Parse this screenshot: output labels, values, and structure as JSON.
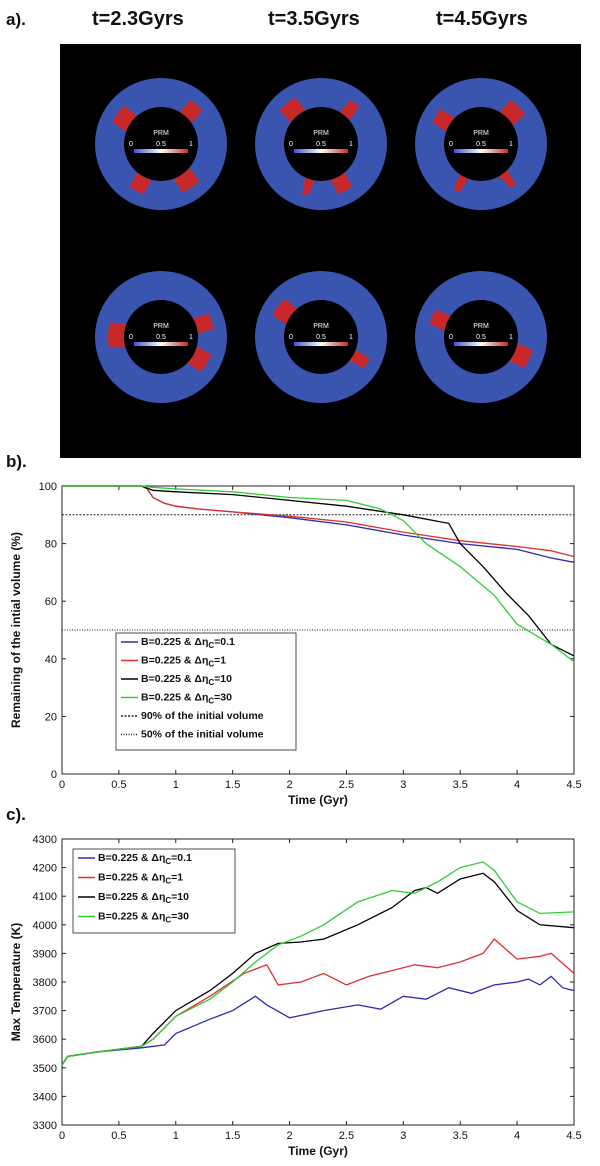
{
  "panel_a": {
    "label": "a).",
    "times": [
      "t=2.3Gyrs",
      "t=3.5Gyrs",
      "t=4.5Gyrs"
    ],
    "colorbar": {
      "title": "PRM",
      "ticks": [
        "0",
        "0.5",
        "1"
      ]
    },
    "colors": {
      "mantle": "#3a55b0",
      "core": "#000000",
      "prm": "#c8282a",
      "background": "#000000"
    }
  },
  "panel_b": {
    "label": "b)."
  },
  "panel_c": {
    "label": "c)."
  },
  "chart_data": [
    {
      "type": "line",
      "xlabel": "Time (Gyr)",
      "ylabel": "Remaining of the intial volume (%)",
      "xlim": [
        0,
        4.5
      ],
      "ylim": [
        0,
        100
      ],
      "xticks": [
        "0",
        "0.5",
        "1",
        "1.5",
        "2",
        "2.5",
        "3",
        "3.5",
        "4",
        "4.5"
      ],
      "yticks": [
        "0",
        "20",
        "40",
        "60",
        "80",
        "100"
      ],
      "legend": "lower-left",
      "reference_lines": [
        {
          "name": "90% of the initial volume",
          "y": 90
        },
        {
          "name": "50% of the initial volume",
          "y": 50
        }
      ],
      "series": [
        {
          "name": "B=0.225 & Δη_C=0.1",
          "color": "#2b2bb0",
          "x": [
            0,
            0.7,
            0.75,
            0.8,
            0.9,
            1.0,
            1.2,
            1.5,
            2.0,
            2.5,
            3.0,
            3.5,
            4.0,
            4.3,
            4.5
          ],
          "y": [
            100,
            100,
            99,
            96,
            94,
            93,
            92,
            91,
            89,
            86.5,
            83,
            80,
            78,
            75,
            73.5
          ]
        },
        {
          "name": "B=0.225 & Δη_C=1",
          "color": "#e03030",
          "x": [
            0,
            0.7,
            0.75,
            0.8,
            0.9,
            1.0,
            1.2,
            1.5,
            2.0,
            2.5,
            3.0,
            3.5,
            4.0,
            4.3,
            4.5
          ],
          "y": [
            100,
            100,
            99,
            96,
            94,
            93,
            92,
            91,
            89.5,
            87.5,
            84,
            81,
            79,
            77.5,
            75.5
          ]
        },
        {
          "name": "B=0.225 & Δη_C=10",
          "color": "#000000",
          "x": [
            0,
            0.7,
            0.8,
            1.0,
            1.5,
            2.0,
            2.5,
            3.0,
            3.4,
            3.5,
            3.7,
            3.9,
            4.1,
            4.3,
            4.5
          ],
          "y": [
            100,
            100,
            98.5,
            98,
            97,
            95,
            93,
            90,
            87,
            80,
            72,
            63,
            55,
            45,
            41
          ]
        },
        {
          "name": "B=0.225 & Δη_C=30",
          "color": "#33cc33",
          "x": [
            0,
            0.7,
            0.8,
            1.0,
            1.5,
            2.0,
            2.5,
            2.8,
            3.0,
            3.2,
            3.5,
            3.8,
            4.0,
            4.3,
            4.5
          ],
          "y": [
            100,
            100,
            99.5,
            99,
            98,
            96,
            95,
            92,
            88,
            80,
            72,
            62,
            52,
            45,
            39
          ]
        }
      ]
    },
    {
      "type": "line",
      "xlabel": "Time (Gyr)",
      "ylabel": "Max Temperature (K)",
      "xlim": [
        0,
        4.5
      ],
      "ylim": [
        3300,
        4300
      ],
      "xticks": [
        "0",
        "0.5",
        "1",
        "1.5",
        "2",
        "2.5",
        "3",
        "3.5",
        "4",
        "4.5"
      ],
      "yticks": [
        "3300",
        "3400",
        "3500",
        "3600",
        "3700",
        "3800",
        "3900",
        "4000",
        "4100",
        "4200",
        "4300"
      ],
      "legend": "top-left",
      "series": [
        {
          "name": "B=0.225 & Δη_C=0.1",
          "color": "#2b2bb0",
          "x": [
            0,
            0.05,
            0.3,
            0.7,
            0.9,
            1.0,
            1.3,
            1.5,
            1.7,
            1.8,
            2.0,
            2.3,
            2.6,
            2.8,
            3.0,
            3.2,
            3.4,
            3.6,
            3.8,
            4.0,
            4.1,
            4.2,
            4.3,
            4.4,
            4.5
          ],
          "y": [
            3510,
            3540,
            3555,
            3570,
            3580,
            3620,
            3670,
            3700,
            3750,
            3720,
            3675,
            3700,
            3720,
            3705,
            3750,
            3740,
            3780,
            3760,
            3790,
            3800,
            3810,
            3790,
            3820,
            3780,
            3770
          ]
        },
        {
          "name": "B=0.225 & Δη_C=1",
          "color": "#e03030",
          "x": [
            0,
            0.05,
            0.3,
            0.7,
            0.8,
            1.0,
            1.3,
            1.6,
            1.8,
            1.9,
            2.1,
            2.3,
            2.5,
            2.7,
            2.9,
            3.1,
            3.3,
            3.5,
            3.7,
            3.8,
            4.0,
            4.2,
            4.3,
            4.5
          ],
          "y": [
            3510,
            3540,
            3555,
            3575,
            3600,
            3680,
            3750,
            3830,
            3860,
            3790,
            3800,
            3830,
            3790,
            3820,
            3840,
            3860,
            3850,
            3870,
            3900,
            3950,
            3880,
            3890,
            3900,
            3830
          ]
        },
        {
          "name": "B=0.225 & Δη_C=10",
          "color": "#000000",
          "x": [
            0,
            0.05,
            0.3,
            0.7,
            0.8,
            1.0,
            1.3,
            1.5,
            1.7,
            1.9,
            2.1,
            2.3,
            2.6,
            2.9,
            3.1,
            3.2,
            3.3,
            3.5,
            3.7,
            3.8,
            4.0,
            4.2,
            4.5
          ],
          "y": [
            3510,
            3540,
            3555,
            3575,
            3620,
            3700,
            3770,
            3830,
            3900,
            3935,
            3940,
            3950,
            4000,
            4060,
            4120,
            4130,
            4110,
            4160,
            4180,
            4150,
            4050,
            4000,
            3990
          ]
        },
        {
          "name": "B=0.225 & Δη_C=30",
          "color": "#33cc33",
          "x": [
            0,
            0.05,
            0.3,
            0.7,
            0.8,
            1.0,
            1.3,
            1.5,
            1.7,
            1.9,
            2.1,
            2.3,
            2.6,
            2.9,
            3.1,
            3.3,
            3.5,
            3.7,
            3.8,
            4.0,
            4.2,
            4.5
          ],
          "y": [
            3510,
            3540,
            3555,
            3575,
            3600,
            3680,
            3740,
            3800,
            3870,
            3930,
            3960,
            4000,
            4080,
            4120,
            4110,
            4150,
            4200,
            4220,
            4190,
            4080,
            4040,
            4045
          ]
        }
      ]
    }
  ]
}
